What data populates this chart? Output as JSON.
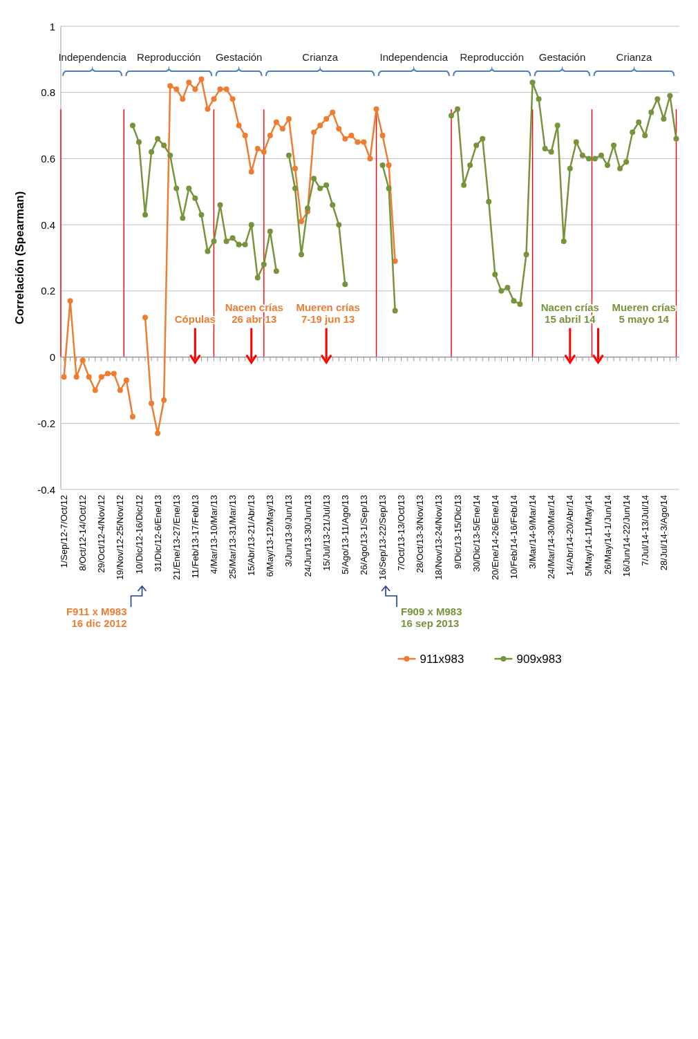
{
  "chart_data": {
    "type": "line",
    "ylabel": "Correlación (Spearman)",
    "categories": [
      "1/Sep/12-7/Oct/12",
      null,
      null,
      "8/Oct/12-14/Oct/12",
      null,
      null,
      "29/Oct/12-4/Nov/12",
      null,
      null,
      "19/Nov/12-25/Nov/12",
      null,
      null,
      "10/Dic/12-16/Dic/12",
      null,
      null,
      "31/Dic/12-6/Ene/13",
      null,
      null,
      "21/Ene/13-27/Ene/13",
      null,
      null,
      "11/Feb/13-17/Feb/13",
      null,
      null,
      "4/Mar/13-10/Mar/13",
      null,
      null,
      "25/Mar/13-31/Mar/13",
      null,
      null,
      "15/Abr/13-21/Abr/13",
      null,
      null,
      "6/May/13-12/May/13",
      null,
      null,
      "3/Jun/13-9/Jun/13",
      null,
      null,
      "24/Jun/13-30/Jun/13",
      null,
      null,
      "15/Jul/13-21/Jul/13",
      null,
      null,
      "5/Ago/13-11/Ago/13",
      null,
      null,
      "26/Ago/13-1/Sep/13",
      null,
      null,
      "16/Sep/13-22/Sep/13",
      null,
      null,
      "7/Oct/13-13/Oct/13",
      null,
      null,
      "28/Oct/13-3/Nov/13",
      null,
      null,
      "18/Nov/13-24/Nov/13",
      null,
      null,
      "9/Dic/13-15/Dic/13",
      null,
      null,
      "30/Dic/13-5/Ene/14",
      null,
      null,
      "20/Ene/14-26/Ene/14",
      null,
      null,
      "10/Feb/14-16/Feb/14",
      null,
      null,
      "3/Mar/14-9/Mar/14",
      null,
      null,
      "24/Mar/14-30/Mar/14",
      null,
      null,
      "14/Abr/14-20/Abr/14",
      null,
      null,
      "5/May/14-11/May/14",
      null,
      null,
      "26/May/14-1/Jun/14",
      null,
      null,
      "16/Jun/14-22/Jun/14",
      null,
      null,
      "7/Jul/14-13/Jul/14",
      null,
      null,
      "28/Jul/14-3/Ago/14",
      null,
      null
    ],
    "ylim": [
      -0.4,
      1
    ],
    "yticks": [
      -0.4,
      -0.2,
      0,
      0.2,
      0.4,
      0.6,
      0.8,
      1
    ],
    "grid": "y",
    "legend": "bottom",
    "marker": "circle",
    "line_style": "solid",
    "series": [
      {
        "name": "911x983",
        "color": "#ed7d31",
        "values": [
          -0.06,
          0.17,
          -0.06,
          -0.01,
          -0.06,
          -0.1,
          -0.06,
          -0.05,
          -0.05,
          -0.1,
          -0.07,
          -0.18,
          null,
          0.12,
          -0.14,
          -0.23,
          -0.13,
          0.82,
          0.81,
          0.78,
          0.83,
          0.81,
          0.84,
          0.75,
          0.78,
          0.81,
          0.81,
          0.78,
          0.7,
          0.67,
          0.56,
          0.63,
          0.62,
          0.67,
          0.71,
          0.69,
          0.72,
          0.57,
          0.41,
          0.44,
          0.68,
          0.7,
          0.72,
          0.74,
          0.69,
          0.66,
          0.67,
          0.65,
          0.65,
          0.6,
          0.75,
          0.67,
          0.58,
          0.29,
          null,
          null,
          null,
          null,
          null,
          null,
          null,
          null,
          null,
          null,
          null,
          null,
          null,
          null,
          null,
          null,
          null,
          null,
          null,
          null,
          null,
          null,
          null,
          null,
          null,
          null,
          null,
          null,
          null,
          null,
          null,
          null,
          null,
          null,
          null,
          null,
          null,
          null,
          null,
          null,
          null,
          null,
          null,
          null,
          null
        ]
      },
      {
        "name": "909x983",
        "color": "#77933c",
        "values": [
          null,
          null,
          null,
          null,
          null,
          null,
          null,
          null,
          null,
          null,
          null,
          0.7,
          0.65,
          0.43,
          0.62,
          0.66,
          0.64,
          0.61,
          0.51,
          0.42,
          0.51,
          0.48,
          0.43,
          0.32,
          0.35,
          0.46,
          0.35,
          0.36,
          0.34,
          0.34,
          0.4,
          0.24,
          0.28,
          0.38,
          0.26,
          null,
          0.61,
          0.51,
          0.31,
          0.45,
          0.54,
          0.51,
          0.52,
          0.46,
          0.4,
          0.22,
          null,
          null,
          null,
          null,
          null,
          0.58,
          0.51,
          0.14,
          null,
          null,
          null,
          null,
          null,
          null,
          null,
          null,
          0.73,
          0.75,
          0.52,
          0.58,
          0.64,
          0.66,
          0.47,
          0.25,
          0.2,
          0.21,
          0.17,
          0.16,
          0.31,
          0.83,
          0.78,
          0.63,
          0.62,
          0.7,
          0.35,
          0.57,
          0.65,
          0.61,
          0.6,
          0.6,
          0.61,
          0.58,
          0.64,
          0.57,
          0.59,
          0.68,
          0.71,
          0.67,
          0.74,
          0.78,
          0.72,
          0.79,
          0.66
        ]
      }
    ],
    "annotations": [
      {
        "text": "Cópulas",
        "x": "11/Feb/13-17/Feb/13"
      },
      {
        "text": "Nacen crías\n26 abr 13",
        "x": "15/Abr/13-21/Abr/13"
      },
      {
        "text": "Mueren crías\n7-19 jun 13",
        "x": "15/Jul/13-21/Jul/13"
      },
      {
        "text": "Nacen crías\n15 abril 14",
        "x": "14/Abr/14-20/Abr/14"
      },
      "Mueren crías\n5 mayo 14",
      "F911 x M983\n16 dic 2012",
      "F909 x M983\n16 sep 2013",
      "Independencia",
      "Reproducción",
      "Gestación",
      "Crianza",
      "Independencia",
      "Reproducción",
      "Gestación",
      "Crianza"
    ]
  }
}
